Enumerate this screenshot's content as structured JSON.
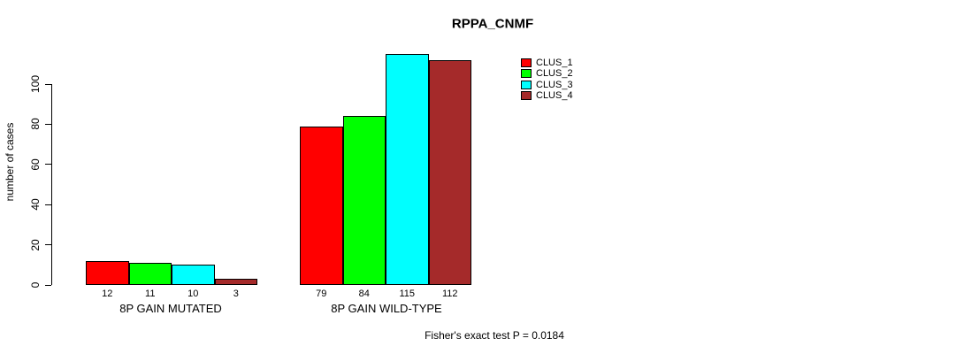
{
  "chart_data": {
    "type": "bar",
    "title": "RPPA_CNMF",
    "xlabel": "",
    "ylabel": "number of cases",
    "categories": [
      "8P GAIN MUTATED",
      "8P GAIN WILD-TYPE"
    ],
    "series": [
      {
        "name": "CLUS_1",
        "color": "#FF0000",
        "values": [
          12,
          79
        ]
      },
      {
        "name": "CLUS_2",
        "color": "#00FF00",
        "values": [
          11,
          84
        ]
      },
      {
        "name": "CLUS_3",
        "color": "#00FFFF",
        "values": [
          10,
          115
        ]
      },
      {
        "name": "CLUS_4",
        "color": "#A52A2A",
        "values": [
          3,
          112
        ]
      }
    ],
    "yticks": [
      0,
      20,
      40,
      60,
      80,
      100
    ],
    "ylim": [
      0,
      100
    ],
    "bar_value_labels": true,
    "legend_position": "top-right",
    "grid": false,
    "annotation": "Fisher's exact test P = 0.0184"
  }
}
